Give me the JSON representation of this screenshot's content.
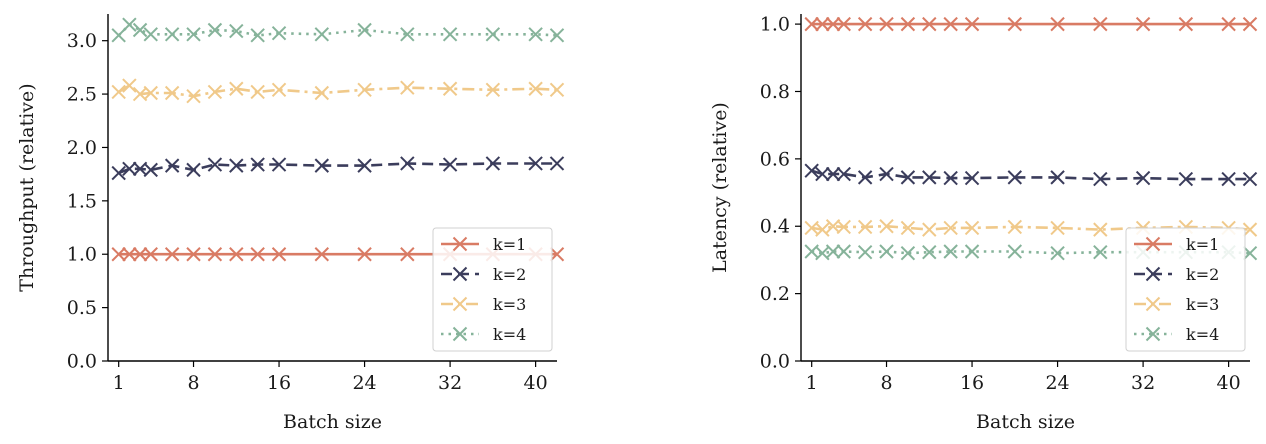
{
  "chart_data": [
    {
      "type": "line",
      "title": "",
      "xlabel": "Batch size",
      "ylabel": "Throughput (relative)",
      "xlim": [
        0,
        42
      ],
      "ylim": [
        0,
        3.25
      ],
      "xticks": [
        1,
        8,
        16,
        24,
        32,
        40
      ],
      "yticks": [
        0.0,
        0.5,
        1.0,
        1.5,
        2.0,
        2.5,
        3.0
      ],
      "ytick_labels": [
        "0.0",
        "0.5",
        "1.0",
        "1.5",
        "2.0",
        "2.5",
        "3.0"
      ],
      "x": [
        1,
        2,
        3,
        4,
        6,
        8,
        10,
        12,
        14,
        16,
        20,
        24,
        28,
        32,
        36,
        40,
        42
      ],
      "series": [
        {
          "name": "k=1",
          "values": [
            1.0,
            1.0,
            1.0,
            1.0,
            1.0,
            1.0,
            1.0,
            1.0,
            1.0,
            1.0,
            1.0,
            1.0,
            1.0,
            1.0,
            1.0,
            1.0,
            1.0
          ]
        },
        {
          "name": "k=2",
          "values": [
            1.76,
            1.8,
            1.8,
            1.79,
            1.83,
            1.79,
            1.84,
            1.83,
            1.84,
            1.84,
            1.83,
            1.83,
            1.85,
            1.84,
            1.85,
            1.85,
            1.85
          ]
        },
        {
          "name": "k=3",
          "values": [
            2.52,
            2.58,
            2.5,
            2.51,
            2.51,
            2.48,
            2.52,
            2.55,
            2.52,
            2.54,
            2.51,
            2.54,
            2.56,
            2.55,
            2.54,
            2.55,
            2.54
          ]
        },
        {
          "name": "k=4",
          "values": [
            3.05,
            3.15,
            3.1,
            3.06,
            3.06,
            3.06,
            3.1,
            3.09,
            3.05,
            3.07,
            3.06,
            3.1,
            3.06,
            3.06,
            3.06,
            3.06,
            3.05
          ]
        }
      ],
      "legend_position": "lower-right",
      "grid": false
    },
    {
      "type": "line",
      "title": "",
      "xlabel": "Batch size",
      "ylabel": "Latency (relative)",
      "xlim": [
        0,
        42
      ],
      "ylim": [
        0,
        1.03
      ],
      "xticks": [
        1,
        8,
        16,
        24,
        32,
        40
      ],
      "yticks": [
        0.0,
        0.2,
        0.4,
        0.6,
        0.8,
        1.0
      ],
      "ytick_labels": [
        "0.0",
        "0.2",
        "0.4",
        "0.6",
        "0.8",
        "1.0"
      ],
      "x": [
        1,
        2,
        3,
        4,
        6,
        8,
        10,
        12,
        14,
        16,
        20,
        24,
        28,
        32,
        36,
        40,
        42
      ],
      "series": [
        {
          "name": "k=1",
          "values": [
            1.0,
            1.0,
            1.0,
            1.0,
            1.0,
            1.0,
            1.0,
            1.0,
            1.0,
            1.0,
            1.0,
            1.0,
            1.0,
            1.0,
            1.0,
            1.0,
            1.0
          ]
        },
        {
          "name": "k=2",
          "values": [
            0.565,
            0.555,
            0.555,
            0.555,
            0.545,
            0.555,
            0.545,
            0.545,
            0.543,
            0.543,
            0.545,
            0.545,
            0.54,
            0.543,
            0.54,
            0.54,
            0.54
          ]
        },
        {
          "name": "k=3",
          "values": [
            0.395,
            0.39,
            0.4,
            0.398,
            0.398,
            0.4,
            0.395,
            0.39,
            0.395,
            0.395,
            0.398,
            0.395,
            0.39,
            0.395,
            0.398,
            0.395,
            0.39
          ]
        },
        {
          "name": "k=4",
          "values": [
            0.325,
            0.32,
            0.325,
            0.325,
            0.323,
            0.325,
            0.32,
            0.323,
            0.325,
            0.325,
            0.325,
            0.32,
            0.323,
            0.323,
            0.323,
            0.323,
            0.32
          ]
        }
      ],
      "legend_position": "lower-right",
      "grid": false
    }
  ],
  "series_styles": [
    {
      "color": "#d97b64",
      "dash": ""
    },
    {
      "color": "#3b3d5c",
      "dash": "11,6"
    },
    {
      "color": "#f0c98a",
      "dash": "12,5,3,5"
    },
    {
      "color": "#86b39a",
      "dash": "2.5,5"
    }
  ]
}
